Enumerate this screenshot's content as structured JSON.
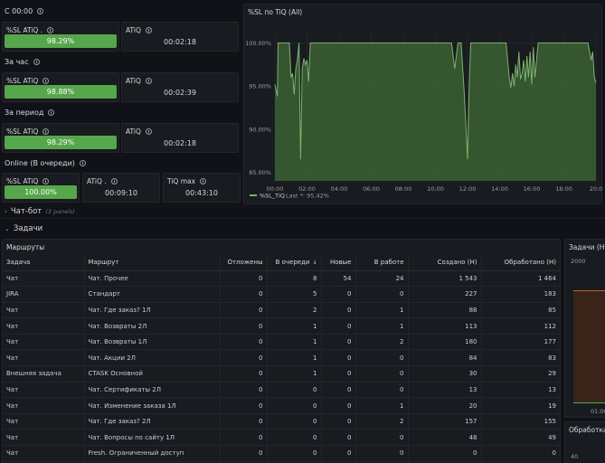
{
  "sections": [
    {
      "label": "С 00:00",
      "stats": [
        {
          "title": "%SL ATiQ .",
          "value": "98.29%",
          "type": "bar"
        },
        {
          "title": "ATiQ",
          "value": "00:02:18",
          "type": "text"
        }
      ]
    },
    {
      "label": "За час",
      "stats": [
        {
          "title": "%SL ATiQ",
          "value": "98.88%",
          "type": "bar"
        },
        {
          "title": "ATiQ",
          "value": "00:02:39",
          "type": "text"
        }
      ]
    },
    {
      "label": "За период",
      "stats": [
        {
          "title": "%SL ATiQ",
          "value": "98.29%",
          "type": "bar"
        },
        {
          "title": "ATiQ",
          "value": "00:02:18",
          "type": "text"
        }
      ]
    },
    {
      "label": "Online (В очереди)",
      "stats": [
        {
          "title": "%SL ATiQ",
          "value": "100.00%",
          "type": "bar"
        },
        {
          "title": "ATiQ .",
          "value": "00:09:10",
          "type": "text"
        },
        {
          "title": "TiQ max",
          "value": "00:43:10",
          "type": "text"
        }
      ]
    }
  ],
  "colors": {
    "green": "#56a64b",
    "bg": "#111217",
    "panel": "#181b1f",
    "line": "#7eb26d"
  },
  "chart": {
    "title": "%SL по TiQ (All)",
    "legend_series": "%SL_TiQ",
    "legend_last": "Last *: 95.42%"
  },
  "chart_data": {
    "type": "line",
    "ylim": [
      84,
      101
    ],
    "xlim": [
      0,
      20
    ],
    "y_ticks": [
      "85.00%",
      "90.00%",
      "95.00%",
      "100.00%"
    ],
    "x_ticks": [
      "00:00",
      "02:00",
      "04:00",
      "06:00",
      "08:00",
      "10:00",
      "12:00",
      "14:00",
      "16:00",
      "18:00",
      "20:0"
    ],
    "series": [
      {
        "name": "%SL_TiQ",
        "x": [
          0,
          0.15,
          0.2,
          0.6,
          0.8,
          0.9,
          1.0,
          1.1,
          1.2,
          1.3,
          1.4,
          1.5,
          1.6,
          1.7,
          1.8,
          1.9,
          2.0,
          2.1,
          2.2,
          11.0,
          11.2,
          11.4,
          11.6,
          11.8,
          12.0,
          12.1,
          12.2,
          14.0,
          14.4,
          14.6,
          14.7,
          14.8,
          14.9,
          15.0,
          15.1,
          15.2,
          15.3,
          15.4,
          15.5,
          15.6,
          15.7,
          15.8,
          15.9,
          16.0,
          16.1,
          16.2,
          16.3,
          16.4,
          16.5,
          17.0,
          17.5,
          18.0,
          18.5,
          19.0,
          19.5,
          19.7,
          19.8,
          19.9,
          20.0
        ],
        "y": [
          95.2,
          93.8,
          100,
          100,
          100,
          100,
          96.0,
          96.5,
          94.0,
          97.0,
          98.0,
          100,
          86.5,
          97.0,
          98.2,
          97.5,
          98.0,
          95.5,
          100,
          100,
          97.0,
          100,
          100,
          94.0,
          86.5,
          95.0,
          100,
          100,
          100,
          96.0,
          94.8,
          96.5,
          95.0,
          97.5,
          96.0,
          99.0,
          95.8,
          96.5,
          98.0,
          95.5,
          98.5,
          96.0,
          99.0,
          95.2,
          99.5,
          96.0,
          98.0,
          100,
          100,
          100,
          100,
          100,
          100,
          100,
          100,
          98.0,
          99.0,
          96.0,
          95.42
        ]
      }
    ]
  },
  "rows": [
    {
      "label": "Чат-бот",
      "sub": "(3 panels)",
      "collapsed": true
    },
    {
      "label": "Задачи",
      "collapsed": false
    }
  ],
  "table": {
    "title": "Маршруты",
    "columns": [
      "Задача",
      "Маршрут",
      "Отложены",
      "В очереди",
      "Новые",
      "В работе",
      "Создано (Н)",
      "Обработано (Н)"
    ],
    "sort_indicator": "↓",
    "rows": [
      [
        "Чат",
        "Чат. Прочее",
        "0",
        "8",
        "54",
        "24",
        "1 543",
        "1 464"
      ],
      [
        "JIRA",
        "Стандарт",
        "0",
        "5",
        "0",
        "0",
        "227",
        "183"
      ],
      [
        "Чат",
        "Чат. Где заказ? 1Л",
        "0",
        "2",
        "0",
        "1",
        "88",
        "85"
      ],
      [
        "Чат",
        "Чат. Возвраты 2Л",
        "0",
        "1",
        "0",
        "1",
        "113",
        "112"
      ],
      [
        "Чат",
        "Чат. Возвраты 1Л",
        "0",
        "1",
        "0",
        "2",
        "180",
        "177"
      ],
      [
        "Чат",
        "Чат. Акции 2Л",
        "0",
        "1",
        "0",
        "0",
        "84",
        "83"
      ],
      [
        "Внешняя задача",
        "CTASK Основной",
        "0",
        "1",
        "0",
        "0",
        "30",
        "29"
      ],
      [
        "Чат",
        "Чат. Сертификаты 2Л",
        "0",
        "0",
        "0",
        "0",
        "13",
        "13"
      ],
      [
        "Чат",
        "Чат. Изменение заказа 1Л",
        "0",
        "0",
        "0",
        "1",
        "20",
        "19"
      ],
      [
        "Чат",
        "Чат. Где заказ? 2Л",
        "0",
        "0",
        "0",
        "2",
        "157",
        "155"
      ],
      [
        "Чат",
        "Чат. Вопросы по сайту 1Л",
        "0",
        "0",
        "0",
        "0",
        "48",
        "49"
      ],
      [
        "Чат",
        "Fresh. Ограниченный доступ",
        "0",
        "0",
        "0",
        "0",
        "0",
        "0"
      ]
    ]
  },
  "side_panels": {
    "top_title": "Задачи (Н",
    "top_y_tick": "2000",
    "top_x_tick": "01:00",
    "bottom_title": "Обработка",
    "bottom_y_tick": "40"
  }
}
